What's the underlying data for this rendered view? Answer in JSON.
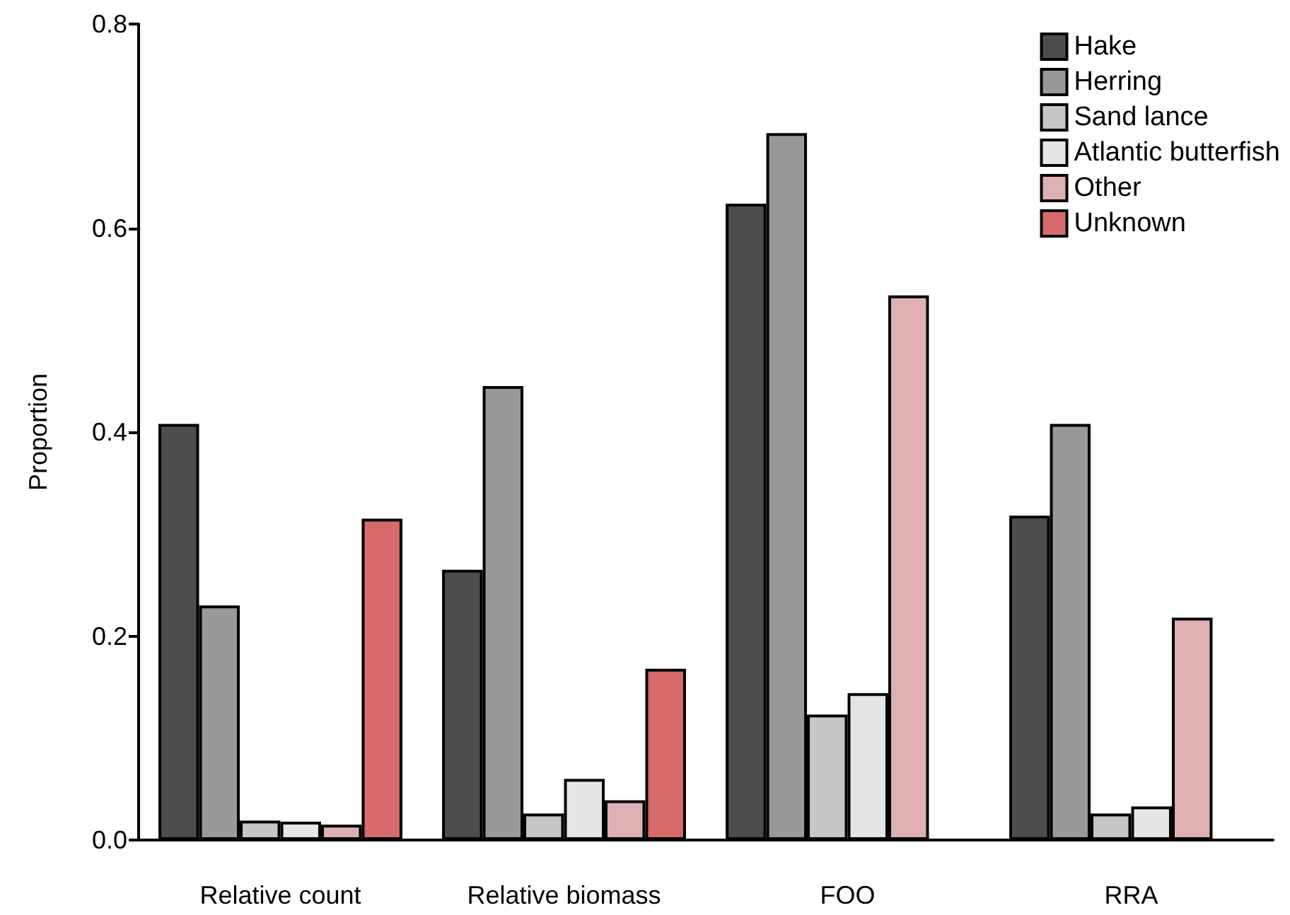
{
  "chart_data": {
    "type": "bar",
    "ylabel": "Proportion",
    "categories": [
      "Relative count",
      "Relative biomass",
      "FOO",
      "RRA"
    ],
    "series": [
      {
        "name": "Hake",
        "color": "#4d4d4d",
        "values": [
          0.408,
          0.265,
          0.624,
          0.318
        ]
      },
      {
        "name": "Herring",
        "color": "#999999",
        "values": [
          0.23,
          0.445,
          0.693,
          0.408
        ]
      },
      {
        "name": "Sand lance",
        "color": "#c6c6c6",
        "values": [
          0.019,
          0.026,
          0.123,
          0.026
        ]
      },
      {
        "name": "Atlantic butterfish",
        "color": "#e6e6e6",
        "values": [
          0.018,
          0.06,
          0.144,
          0.033
        ]
      },
      {
        "name": "Other",
        "color": "#deb0b1",
        "values": [
          0.015,
          0.039,
          0.534,
          0.218
        ]
      },
      {
        "name": "Unknown",
        "color": "#d76a6a",
        "values": [
          0.315,
          0.168,
          null,
          null
        ]
      }
    ],
    "ylim": [
      0,
      0.8
    ],
    "yticks": [
      {
        "value": 0,
        "label": "0.0"
      },
      0.2,
      0.4,
      0.6,
      0.8
    ],
    "grid": false,
    "legend": "top right"
  }
}
